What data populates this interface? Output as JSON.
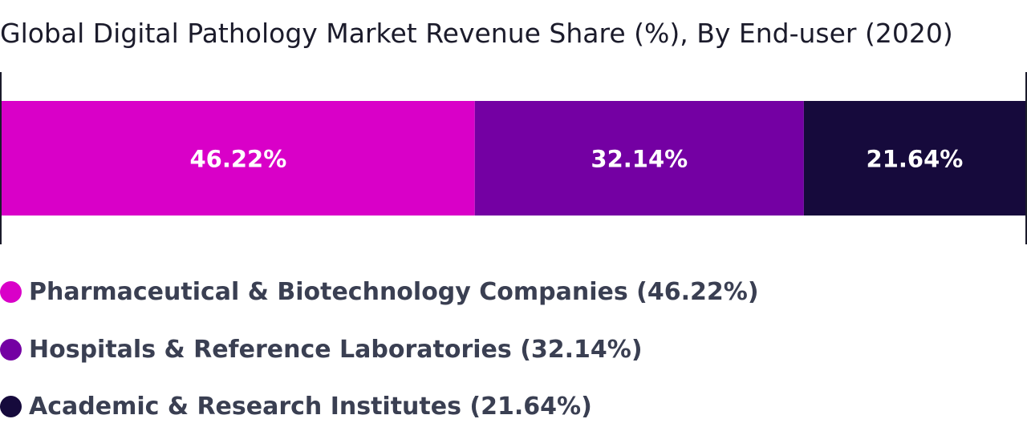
{
  "chart_data": {
    "type": "bar",
    "orientation": "horizontal",
    "stacked": true,
    "title": "Global Digital Pathology Market Revenue Share (%), By End-user (2020)",
    "unit": "%",
    "xlim": [
      0,
      100
    ],
    "categories": [
      "Pharmaceutical & Biotechnology Companies",
      "Hospitals & Reference Laboratories",
      "Academic & Research Institutes"
    ],
    "values": [
      46.22,
      32.14,
      21.64
    ],
    "value_labels": [
      "46.22%",
      "32.14%",
      "21.64%"
    ],
    "colors": [
      "#d900c8",
      "#7400a3",
      "#160a3c"
    ],
    "legend": {
      "position": "bottom",
      "entries": [
        "Pharmaceutical & Biotechnology Companies (46.22%)",
        "Hospitals & Reference Laboratories (32.14%)",
        "Academic & Research Institutes (21.64%)"
      ]
    }
  }
}
